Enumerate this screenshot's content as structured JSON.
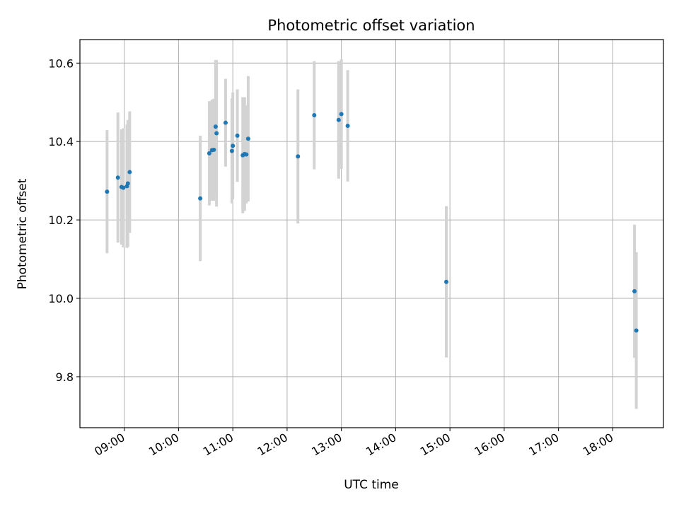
{
  "chart_data": {
    "type": "scatter",
    "title": "Photometric offset variation",
    "xlabel": "UTC time",
    "ylabel": "Photometric offset",
    "xlim": [
      "08:11",
      "18:56"
    ],
    "ylim": [
      9.67,
      10.66
    ],
    "xticks": [
      "09:00",
      "10:00",
      "11:00",
      "12:00",
      "13:00",
      "14:00",
      "15:00",
      "16:00",
      "17:00",
      "18:00"
    ],
    "yticks": [
      9.8,
      10.0,
      10.2,
      10.4,
      10.6
    ],
    "grid": true,
    "colors": {
      "point": "#1f77b4",
      "errorbar": "#d3d3d3",
      "grid": "#b0b0b0"
    },
    "points": [
      {
        "x": "08:41",
        "y": 10.272,
        "err": 0.157
      },
      {
        "x": "08:53",
        "y": 10.308,
        "err": 0.166
      },
      {
        "x": "08:57",
        "y": 10.284,
        "err": 0.147
      },
      {
        "x": "08:59",
        "y": 10.282,
        "err": 0.152
      },
      {
        "x": "09:03",
        "y": 10.286,
        "err": 0.157
      },
      {
        "x": "09:04",
        "y": 10.293,
        "err": 0.162
      },
      {
        "x": "09:06",
        "y": 10.322,
        "err": 0.155
      },
      {
        "x": "10:24",
        "y": 10.255,
        "err": 0.16
      },
      {
        "x": "10:34",
        "y": 10.37,
        "err": 0.133
      },
      {
        "x": "10:37",
        "y": 10.378,
        "err": 0.129
      },
      {
        "x": "10:39",
        "y": 10.379,
        "err": 0.13
      },
      {
        "x": "10:41",
        "y": 10.438,
        "err": 0.17
      },
      {
        "x": "10:42",
        "y": 10.421,
        "err": 0.187
      },
      {
        "x": "10:52",
        "y": 10.448,
        "err": 0.112
      },
      {
        "x": "10:59",
        "y": 10.376,
        "err": 0.134
      },
      {
        "x": "11:00",
        "y": 10.389,
        "err": 0.136
      },
      {
        "x": "11:05",
        "y": 10.415,
        "err": 0.118
      },
      {
        "x": "11:11",
        "y": 10.365,
        "err": 0.148
      },
      {
        "x": "11:13",
        "y": 10.368,
        "err": 0.145
      },
      {
        "x": "11:15",
        "y": 10.367,
        "err": 0.125
      },
      {
        "x": "11:17",
        "y": 10.407,
        "err": 0.16
      },
      {
        "x": "12:12",
        "y": 10.362,
        "err": 0.171
      },
      {
        "x": "12:30",
        "y": 10.467,
        "err": 0.138
      },
      {
        "x": "12:57",
        "y": 10.455,
        "err": 0.15
      },
      {
        "x": "13:00",
        "y": 10.47,
        "err": 0.14
      },
      {
        "x": "13:07",
        "y": 10.44,
        "err": 0.142
      },
      {
        "x": "14:56",
        "y": 10.042,
        "err": 0.193
      },
      {
        "x": "18:24",
        "y": 10.018,
        "err": 0.17
      },
      {
        "x": "18:26",
        "y": 9.918,
        "err": 0.2
      }
    ]
  }
}
